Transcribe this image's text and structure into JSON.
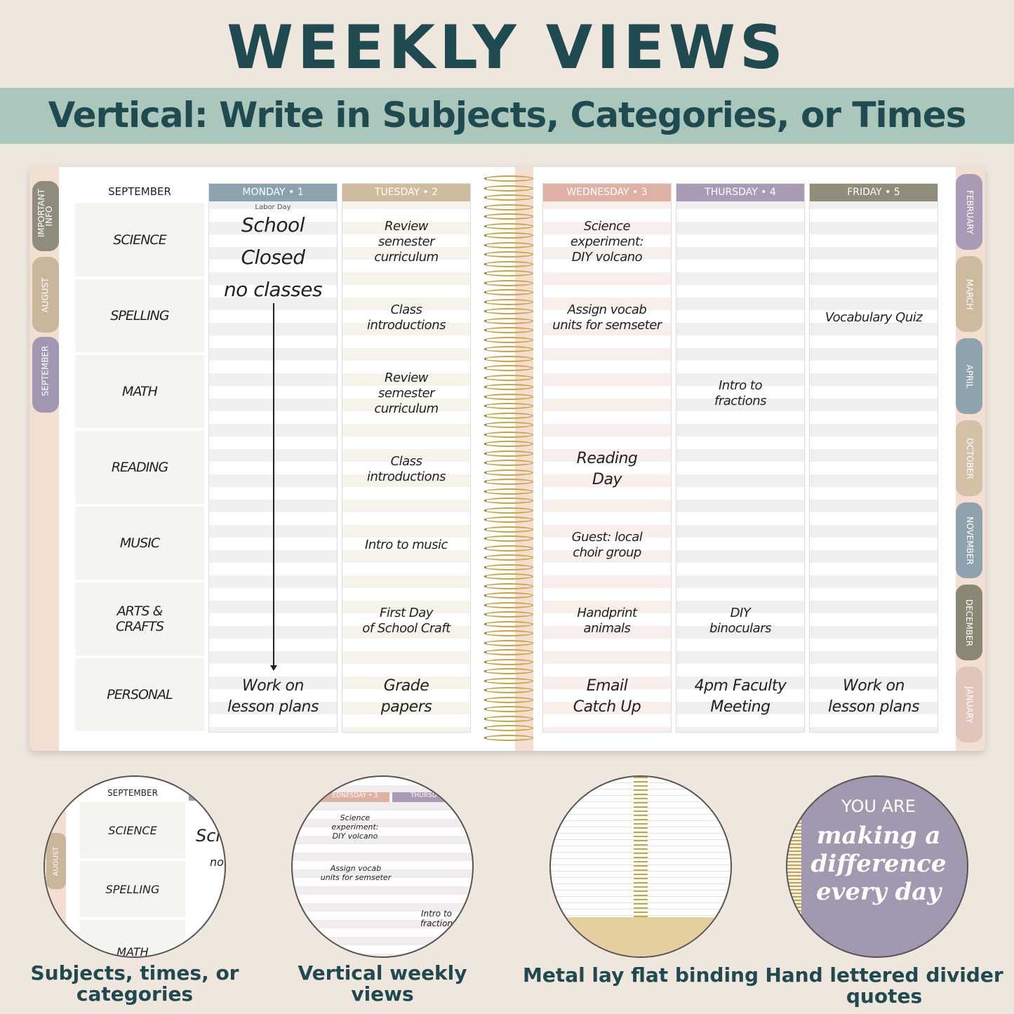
{
  "title": "WEEKLY VIEWS",
  "subtitle": "Vertical: Write in Subjects, Categories, or Times",
  "planner": {
    "month": "SEPTEMBER",
    "left_tabs": [
      {
        "label": "IMPORTANT INFO",
        "color": "#8f8c7e"
      },
      {
        "label": "AUGUST",
        "color": "#c9b79c"
      },
      {
        "label": "SEPTEMBER",
        "color": "#a197b0"
      }
    ],
    "right_tabs": [
      {
        "label": "FEBRUARY",
        "color": "#a99bb6"
      },
      {
        "label": "MARCH",
        "color": "#cdbb9f"
      },
      {
        "label": "APRIL",
        "color": "#8ea3ad"
      },
      {
        "label": "OCTOBER",
        "color": "#d4c2a8"
      },
      {
        "label": "NOVEMBER",
        "color": "#8ea3ad"
      },
      {
        "label": "DECEMBER",
        "color": "#8a8874"
      },
      {
        "label": "JANUARY",
        "color": "#e2c5ba"
      }
    ],
    "categories": [
      "SCIENCE",
      "SPELLING",
      "MATH",
      "READING",
      "MUSIC",
      "ARTS &\nCRAFTS",
      "PERSONAL"
    ],
    "days": [
      {
        "label": "MONDAY • 1",
        "color": "#8ca2ae",
        "stripe": "#eef0f2",
        "note": "Labor Day",
        "cells": [
          "School Closed\nno classes",
          "",
          "",
          "",
          "",
          "",
          "Work on\nlesson plans"
        ]
      },
      {
        "label": "TUESDAY • 2",
        "color": "#cfbc9f",
        "stripe": "#f5f3ea",
        "cells": [
          "Review\nsemester\ncurriculum",
          "Class\nintroductions",
          "Review\nsemester\ncurriculum",
          "Class\nintroductions",
          "Intro to music",
          "First Day\nof School Craft",
          "Grade\npapers"
        ]
      },
      {
        "label": "WEDNESDAY • 3",
        "color": "#dfb0a4",
        "stripe": "#f8eeec",
        "cells": [
          "Science\nexperiment:\nDIY volcano",
          "Assign vocab\nunits for semseter",
          "",
          "Reading\nDay",
          "Guest: local\nchoir group",
          "Handprint\nanimals",
          "Email\nCatch Up"
        ]
      },
      {
        "label": "THURSDAY • 4",
        "color": "#a99bb6",
        "stripe": "#efefef",
        "cells": [
          "",
          "",
          "Intro to\nfractions",
          "",
          "",
          "DIY\nbinoculars",
          "4pm Faculty\nMeeting"
        ]
      },
      {
        "label": "FRIDAY • 5",
        "color": "#8f8c7a",
        "stripe": "#efefef",
        "cells": [
          "",
          "Vocabulary Quiz",
          "",
          "",
          "",
          "",
          "Work on\nlesson plans"
        ]
      }
    ]
  },
  "features": [
    {
      "caption": "Subjects, times, or categories",
      "detail": {
        "month": "SEPTEMBER",
        "items": [
          "SCIENCE",
          "SPELLING",
          "MATH"
        ],
        "tab": "AUGUST",
        "partial": [
          "Sch",
          "no"
        ]
      }
    },
    {
      "caption": "Vertical weekly views",
      "detail": {
        "headers": [
          "EDNESDAY • 3",
          "THURSD"
        ],
        "items": [
          "Science\nexperiment:\nDIY volcano",
          "Assign vocab\nunits for semseter",
          "Intro to\nfraction"
        ]
      }
    },
    {
      "caption": "Metal lay flat binding"
    },
    {
      "caption": "Hand lettered divider quotes",
      "detail": {
        "quote_top": "YOU ARE",
        "quote": "making a\ndifference\nevery day",
        "color": "#a298b0"
      }
    }
  ]
}
